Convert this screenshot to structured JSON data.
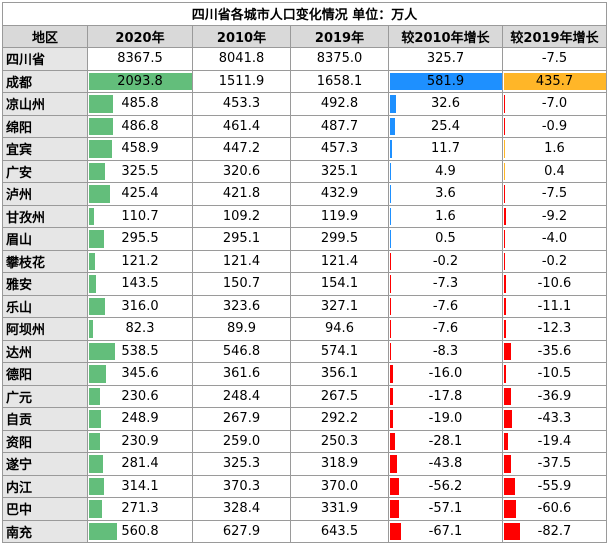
{
  "title": "四川省各城市人口变化情况  单位：万人",
  "headers": [
    "地区",
    "2020年",
    "2010年",
    "2019年",
    "较2010年增长",
    "较2019年增长"
  ],
  "colors": {
    "green_bar": "#63be7b",
    "blue_bar": "#1e90ff",
    "orange_bar": "#ffb628",
    "red_bar": "#ff0000",
    "header_bg": "#d9d9d9",
    "name_bg": "#e6e6e6"
  },
  "rows": [
    {
      "name": "四川省",
      "v2020": "8367.5",
      "v2010": "8041.8",
      "v2019": "8375.0",
      "g2010": "325.7",
      "g2019": "-7.5"
    },
    {
      "name": "成都",
      "v2020": "2093.8",
      "v2010": "1511.9",
      "v2019": "1658.1",
      "g2010": "581.9",
      "g2019": "435.7"
    },
    {
      "name": "凉山州",
      "v2020": "485.8",
      "v2010": "453.3",
      "v2019": "492.8",
      "g2010": "32.6",
      "g2019": "-7.0"
    },
    {
      "name": "绵阳",
      "v2020": "486.8",
      "v2010": "461.4",
      "v2019": "487.7",
      "g2010": "25.4",
      "g2019": "-0.9"
    },
    {
      "name": "宜宾",
      "v2020": "458.9",
      "v2010": "447.2",
      "v2019": "457.3",
      "g2010": "11.7",
      "g2019": "1.6"
    },
    {
      "name": "广安",
      "v2020": "325.5",
      "v2010": "320.6",
      "v2019": "325.1",
      "g2010": "4.9",
      "g2019": "0.4"
    },
    {
      "name": "泸州",
      "v2020": "425.4",
      "v2010": "421.8",
      "v2019": "432.9",
      "g2010": "3.6",
      "g2019": "-7.5"
    },
    {
      "name": "甘孜州",
      "v2020": "110.7",
      "v2010": "109.2",
      "v2019": "119.9",
      "g2010": "1.6",
      "g2019": "-9.2"
    },
    {
      "name": "眉山",
      "v2020": "295.5",
      "v2010": "295.1",
      "v2019": "299.5",
      "g2010": "0.5",
      "g2019": "-4.0"
    },
    {
      "name": "攀枝花",
      "v2020": "121.2",
      "v2010": "121.4",
      "v2019": "121.4",
      "g2010": "-0.2",
      "g2019": "-0.2"
    },
    {
      "name": "雅安",
      "v2020": "143.5",
      "v2010": "150.7",
      "v2019": "154.1",
      "g2010": "-7.3",
      "g2019": "-10.6"
    },
    {
      "name": "乐山",
      "v2020": "316.0",
      "v2010": "323.6",
      "v2019": "327.1",
      "g2010": "-7.6",
      "g2019": "-11.1"
    },
    {
      "name": "阿坝州",
      "v2020": "82.3",
      "v2010": "89.9",
      "v2019": "94.6",
      "g2010": "-7.6",
      "g2019": "-12.3"
    },
    {
      "name": "达州",
      "v2020": "538.5",
      "v2010": "546.8",
      "v2019": "574.1",
      "g2010": "-8.3",
      "g2019": "-35.6"
    },
    {
      "name": "德阳",
      "v2020": "345.6",
      "v2010": "361.6",
      "v2019": "356.1",
      "g2010": "-16.0",
      "g2019": "-10.5"
    },
    {
      "name": "广元",
      "v2020": "230.6",
      "v2010": "248.4",
      "v2019": "267.5",
      "g2010": "-17.8",
      "g2019": "-36.9"
    },
    {
      "name": "自贡",
      "v2020": "248.9",
      "v2010": "267.9",
      "v2019": "292.2",
      "g2010": "-19.0",
      "g2019": "-43.3"
    },
    {
      "name": "资阳",
      "v2020": "230.9",
      "v2010": "259.0",
      "v2019": "250.3",
      "g2010": "-28.1",
      "g2019": "-19.4"
    },
    {
      "name": "遂宁",
      "v2020": "281.4",
      "v2010": "325.3",
      "v2019": "318.9",
      "g2010": "-43.8",
      "g2019": "-37.5"
    },
    {
      "name": "内江",
      "v2020": "314.1",
      "v2010": "370.3",
      "v2019": "370.0",
      "g2010": "-56.2",
      "g2019": "-55.9"
    },
    {
      "name": "巴中",
      "v2020": "271.3",
      "v2010": "328.4",
      "v2019": "331.9",
      "g2010": "-57.1",
      "g2019": "-60.6"
    },
    {
      "name": "南充",
      "v2020": "560.8",
      "v2010": "627.9",
      "v2019": "643.5",
      "g2010": "-67.1",
      "g2019": "-82.7"
    }
  ]
}
